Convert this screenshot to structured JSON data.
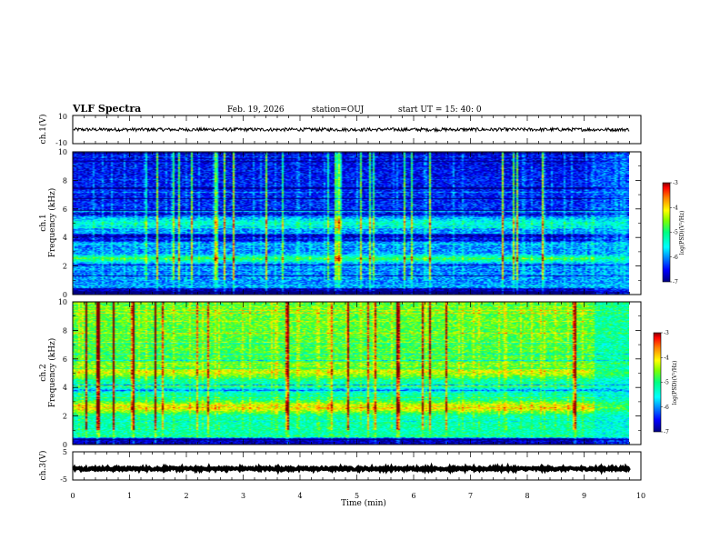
{
  "header": {
    "title": "VLF Spectra",
    "date": "Feb. 19, 2026",
    "station": "station=OUJ",
    "start_ut": "start  UT =   15: 40: 0"
  },
  "colors": {
    "spectrum_scale": [
      "#00007f",
      "#0000ff",
      "#0080ff",
      "#00ffff",
      "#00ff80",
      "#80ff00",
      "#ffff00",
      "#ff8000",
      "#ff0000",
      "#7f0000"
    ],
    "waveform": "#000000",
    "frame": "#000000"
  },
  "chart_data": [
    {
      "type": "line",
      "name": "panel-ch1-waveform",
      "ylabel": "ch.1(V)",
      "ylim": [
        -10,
        10
      ],
      "yticks": [
        "10",
        "-10"
      ],
      "xlim": [
        0,
        10
      ],
      "series": [
        {
          "mean": 0,
          "amplitude_approx": 1.2,
          "x_end_min": 9.8
        }
      ]
    },
    {
      "type": "heatmap",
      "name": "panel-ch1-spectrogram",
      "ylabel_channel": "ch.1",
      "ylabel": "Frequency (kHz)",
      "ylim": [
        0,
        10
      ],
      "yticks": [
        "0",
        "2",
        "4",
        "6",
        "8",
        "10"
      ],
      "xlim": [
        0,
        10
      ],
      "x_end_min": 9.8,
      "colorbar": {
        "label": "log(PSD)(V²/Hz)",
        "range": [
          -7,
          -3
        ],
        "ticks": [
          "-3",
          "-4",
          "-5",
          "-6",
          "-7"
        ]
      },
      "bands_khz": [
        {
          "f": 2.5,
          "width": 0.35,
          "level": 0.55
        },
        {
          "f": 5.0,
          "width": 0.45,
          "level": 0.42
        },
        {
          "f": 4.1,
          "width": 0.25,
          "level": 0.0
        },
        {
          "f": 3.8,
          "width": 0.15,
          "level": 0.05
        }
      ],
      "base_level": 0.25,
      "high_freq_level": 0.15,
      "change_at_min": 9.2
    },
    {
      "type": "heatmap",
      "name": "panel-ch2-spectrogram",
      "ylabel_channel": "ch.2",
      "ylabel": "Frequency (kHz)",
      "ylim": [
        0,
        10
      ],
      "yticks": [
        "0",
        "2",
        "4",
        "6",
        "8",
        "10"
      ],
      "xlim": [
        0,
        10
      ],
      "x_end_min": 9.8,
      "colorbar": {
        "label": "log(PSD)(V²/Hz)",
        "range": [
          -7,
          -3
        ],
        "ticks": [
          "-3",
          "-4",
          "-5",
          "-6",
          "-7"
        ]
      },
      "bands_khz": [
        {
          "f": 2.6,
          "width": 0.6,
          "level": 0.78
        },
        {
          "f": 5.1,
          "width": 0.7,
          "level": 0.7
        },
        {
          "f": 3.8,
          "width": 0.2,
          "level": 0.25
        }
      ],
      "base_level": 0.45,
      "high_freq_level": 0.55,
      "change_at_min": 9.2
    },
    {
      "type": "line",
      "name": "panel-ch3-waveform",
      "ylabel": "ch.3(V)",
      "ylim": [
        -5,
        5
      ],
      "yticks": [
        "5",
        "-5"
      ],
      "xlim": [
        0,
        10
      ],
      "series": [
        {
          "mean": -1,
          "amplitude_approx": 0.4,
          "x_end_min": 9.8
        }
      ]
    }
  ],
  "x_axis": {
    "label": "Time (min)",
    "ticks": [
      "0",
      "1",
      "2",
      "3",
      "4",
      "5",
      "6",
      "7",
      "8",
      "9",
      "10"
    ]
  }
}
